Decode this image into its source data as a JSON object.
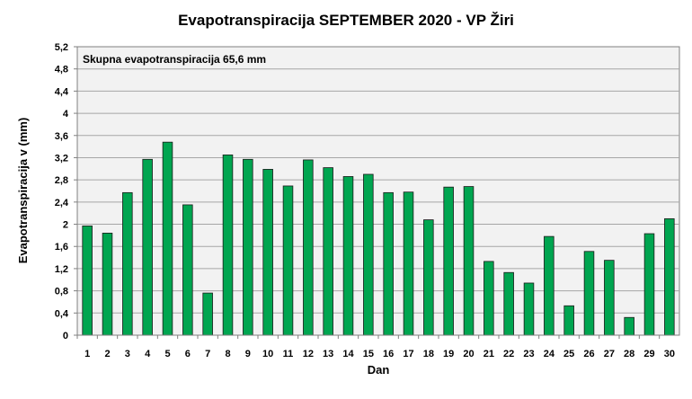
{
  "chart_data": {
    "type": "bar",
    "title": "Evapotranspiracija  SEPTEMBER  2020 - VP Žiri",
    "xlabel": "Dan",
    "ylabel": "Evapotranspiracija v  (mm)",
    "annotation": "Skupna evapotranspiracija 65,6 mm",
    "ylim": [
      0,
      5.2
    ],
    "yticks": [
      "0",
      "0,4",
      "0,8",
      "1,2",
      "1,6",
      "2",
      "2,4",
      "2,8",
      "3,2",
      "3,6",
      "4",
      "4,4",
      "4,8",
      "5,2"
    ],
    "categories": [
      "1",
      "2",
      "3",
      "4",
      "5",
      "6",
      "7",
      "8",
      "9",
      "10",
      "11",
      "12",
      "13",
      "14",
      "15",
      "16",
      "17",
      "18",
      "19",
      "20",
      "21",
      "22",
      "23",
      "24",
      "25",
      "26",
      "27",
      "28",
      "29",
      "30"
    ],
    "values": [
      1.97,
      1.84,
      2.57,
      3.17,
      3.48,
      2.35,
      0.76,
      3.25,
      3.17,
      2.99,
      2.69,
      3.16,
      3.02,
      2.86,
      2.9,
      2.57,
      2.58,
      2.08,
      2.67,
      2.68,
      1.33,
      1.13,
      0.94,
      1.78,
      0.53,
      1.51,
      1.35,
      0.32,
      1.83,
      2.1
    ],
    "grid": true,
    "bar_color": "#00a550",
    "plot_background": "#f2f2f2"
  }
}
